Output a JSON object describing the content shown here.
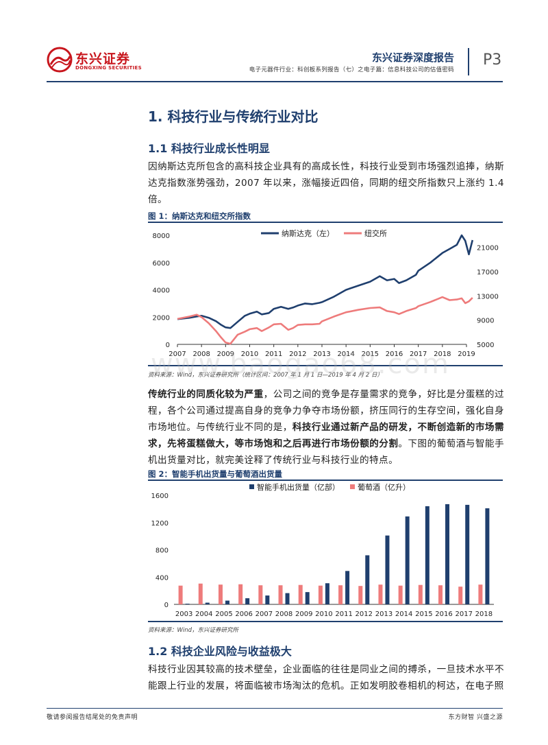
{
  "header": {
    "logo_cn": "东兴证券",
    "logo_en": "DONGXING SECURITIES",
    "report_type": "东兴证券深度报告",
    "subtitle": "电子元器件行业：科创板系列报告（七）之电子篇：信息科技公司的估值密码",
    "page": "P3"
  },
  "section1": {
    "title": "1. 科技行业与传统行业对比"
  },
  "section1_1": {
    "title": "1.1 科技行业成长性明显",
    "para1": "因纳斯达克所包含的高科技企业具有的高成长性，科技行业受到市场强烈追捧，纳斯达克指数涨势强劲，2007 年以来，涨幅接近四倍，同期的纽交所指数只上涨约 1.4 倍。"
  },
  "figure1": {
    "title": "图 1：纳斯达克和纽交所指数",
    "source": "资料来源：Wind，东兴证券研究所（统计区间：2007 年 1 月 1 日—2019 年 4 月 2 日）"
  },
  "para2": {
    "b1": "传统行业的同质化较为严重",
    "t1": "，公司之间的竞争是存量需求的竞争，好比是分蛋糕的过程，各个公司通过提高自身的竞争力争夺市场份额，挤压同行的生存空间，强化自身市场地位。与传统行业不同的是，",
    "b2": "科技行业通过新产品的研发，不断创造新的市场需求，先将蛋糕做大，等市场饱和之后再进行市场份额的分割",
    "t2": "。下图的葡萄酒与智能手机出货量对比，就完美诠释了传统行业与科技行业的特点。"
  },
  "figure2": {
    "title": "图 2：智能手机出货量与葡萄酒出货量",
    "source": "资料来源：Wind，东兴证券研究所"
  },
  "section1_2": {
    "title": "1.2 科技企业风险与收益极大",
    "para": "科技行业因其较高的技术壁垒，企业面临的往往是同业之间的搏杀，一旦技术水平不能跟上行业的发展，将面临被市场淘汰的危机。正如发明胶卷相机的柯达，在电子照"
  },
  "watermark": "www.baogao68.com",
  "footer": {
    "left": "敬请参阅报告结尾处的免责声明",
    "right": "东方财智 兴盛之源"
  },
  "chart_data": [
    {
      "type": "line",
      "x_ticks": [
        "2007",
        "2008",
        "2009",
        "2010",
        "2011",
        "2012",
        "2013",
        "2014",
        "2015",
        "2016",
        "2017",
        "2018",
        "2019"
      ],
      "y_left": {
        "ticks": [
          "0",
          "2000",
          "4000",
          "6000",
          "8000"
        ],
        "lim": [
          0,
          8000
        ]
      },
      "y_right": {
        "ticks": [
          "5000",
          "9000",
          "13000",
          "17000",
          "21000"
        ],
        "lim": [
          5000,
          23000
        ]
      },
      "legend_position": "top",
      "series": [
        {
          "name": "纳斯达克（左）",
          "axis": "left",
          "color": "#1f3f6e",
          "x": [
            2007.0,
            2007.5,
            2007.8,
            2008.0,
            2008.3,
            2008.6,
            2008.8,
            2009.0,
            2009.2,
            2009.5,
            2009.8,
            2010.0,
            2010.3,
            2010.5,
            2010.8,
            2011.0,
            2011.3,
            2011.6,
            2011.8,
            2012.0,
            2012.3,
            2012.6,
            2012.9,
            2013.0,
            2013.5,
            2014.0,
            2014.5,
            2015.0,
            2015.4,
            2015.7,
            2016.0,
            2016.2,
            2016.5,
            2016.9,
            2017.0,
            2017.5,
            2018.0,
            2018.3,
            2018.6,
            2018.8,
            2018.95,
            2019.1,
            2019.25
          ],
          "y": [
            1850,
            1950,
            2050,
            2100,
            1950,
            1700,
            1450,
            1250,
            1200,
            1650,
            2100,
            2250,
            2400,
            2200,
            2300,
            2600,
            2750,
            2600,
            2700,
            2850,
            3000,
            2950,
            3050,
            3100,
            3500,
            4000,
            4300,
            4600,
            5000,
            4700,
            4800,
            4500,
            4700,
            5100,
            5400,
            6000,
            6700,
            7000,
            7300,
            8000,
            7600,
            6600,
            7650
          ]
        },
        {
          "name": "纽交所",
          "axis": "right",
          "color": "#ee7b7b",
          "x": [
            2007.0,
            2007.5,
            2007.8,
            2008.0,
            2008.3,
            2008.6,
            2008.8,
            2009.0,
            2009.2,
            2009.5,
            2009.8,
            2010.0,
            2010.3,
            2010.5,
            2010.8,
            2011.0,
            2011.3,
            2011.6,
            2011.8,
            2012.0,
            2012.3,
            2012.6,
            2012.9,
            2013.0,
            2013.5,
            2014.0,
            2014.5,
            2015.0,
            2015.4,
            2015.7,
            2016.0,
            2016.2,
            2016.5,
            2016.9,
            2017.0,
            2017.5,
            2018.0,
            2018.3,
            2018.6,
            2018.8,
            2018.95,
            2019.1,
            2019.25
          ],
          "y": [
            9200,
            9600,
            9900,
            9500,
            8500,
            7200,
            6200,
            5300,
            5100,
            6600,
            7100,
            7500,
            7700,
            7200,
            7800,
            8300,
            8400,
            7400,
            7700,
            8200,
            8300,
            8300,
            8400,
            8800,
            9600,
            10300,
            10700,
            11000,
            11100,
            10500,
            10300,
            10000,
            10500,
            11000,
            11300,
            12000,
            12800,
            12300,
            12400,
            12600,
            11800,
            12100,
            12700
          ]
        }
      ]
    },
    {
      "type": "bar",
      "categories": [
        "2003",
        "2004",
        "2005",
        "2006",
        "2007",
        "2008",
        "2009",
        "2010",
        "2011",
        "2012",
        "2013",
        "2014",
        "2015",
        "2016",
        "2017",
        "2018"
      ],
      "ylim": [
        0,
        1600
      ],
      "y_ticks": [
        "0",
        "400",
        "800",
        "1200",
        "1600"
      ],
      "legend_position": "top",
      "series": [
        {
          "name": "智能手机出货量（亿部）",
          "color": "#1f3f6e",
          "values": [
            10,
            25,
            55,
            90,
            130,
            165,
            180,
            310,
            490,
            720,
            1010,
            1290,
            1440,
            1470,
            1460,
            1410
          ]
        },
        {
          "name": "葡萄酒（亿升）",
          "color": "#ee7b7b",
          "values": [
            275,
            305,
            290,
            295,
            280,
            280,
            285,
            275,
            280,
            270,
            290,
            275,
            285,
            280,
            260,
            290
          ]
        }
      ]
    }
  ]
}
